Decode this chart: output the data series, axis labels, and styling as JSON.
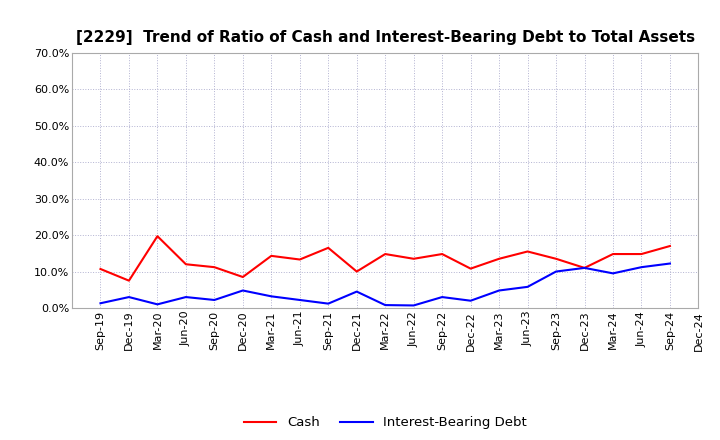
{
  "title": "[2229]  Trend of Ratio of Cash and Interest-Bearing Debt to Total Assets",
  "x_labels": [
    "Sep-19",
    "Dec-19",
    "Mar-20",
    "Jun-20",
    "Sep-20",
    "Dec-20",
    "Mar-21",
    "Jun-21",
    "Sep-21",
    "Dec-21",
    "Mar-22",
    "Jun-22",
    "Sep-22",
    "Dec-22",
    "Mar-23",
    "Jun-23",
    "Sep-23",
    "Dec-23",
    "Mar-24",
    "Jun-24",
    "Sep-24",
    "Dec-24"
  ],
  "cash": [
    0.107,
    0.075,
    0.197,
    0.12,
    0.112,
    0.085,
    0.143,
    0.133,
    0.165,
    0.1,
    0.148,
    0.135,
    0.148,
    0.108,
    0.135,
    0.155,
    0.135,
    0.11,
    0.148,
    0.148,
    0.17,
    null
  ],
  "interest_bearing_debt": [
    0.013,
    0.03,
    0.01,
    0.03,
    0.022,
    0.048,
    0.032,
    0.022,
    0.012,
    0.045,
    0.008,
    0.007,
    0.03,
    0.02,
    0.048,
    0.058,
    0.1,
    0.11,
    0.095,
    0.112,
    0.122,
    null
  ],
  "cash_color": "#FF0000",
  "debt_color": "#0000FF",
  "ylim": [
    0.0,
    0.7
  ],
  "yticks": [
    0.0,
    0.1,
    0.2,
    0.3,
    0.4,
    0.5,
    0.6,
    0.7
  ],
  "ytick_labels": [
    "0.0%",
    "10.0%",
    "20.0%",
    "30.0%",
    "40.0%",
    "50.0%",
    "60.0%",
    "70.0%"
  ],
  "legend_cash": "Cash",
  "legend_debt": "Interest-Bearing Debt",
  "bg_color": "#FFFFFF",
  "grid_color": "#AAAACC",
  "title_fontsize": 11,
  "axis_fontsize": 8,
  "legend_fontsize": 9.5
}
